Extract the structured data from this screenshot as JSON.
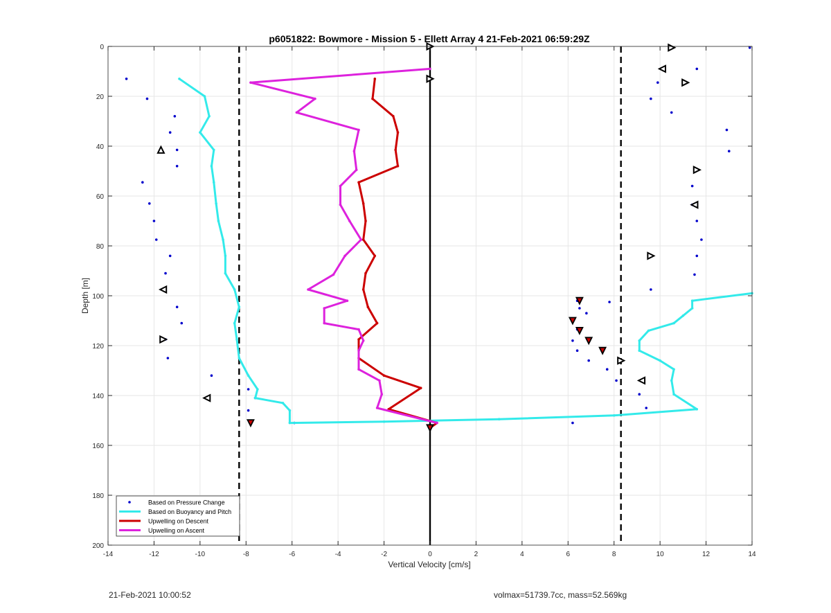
{
  "chart_data": {
    "type": "line",
    "title": "p6051822: Bowmore - Mission 5 - Ellett Array 4 21-Feb-2021 06:59:29Z",
    "xlabel": "Vertical Velocity [cm/s]",
    "ylabel": "Depth [m]",
    "xlim": [
      -14,
      14
    ],
    "ylim": [
      0,
      200
    ],
    "y_reversed": true,
    "xticks": [
      -14,
      -12,
      -10,
      -8,
      -6,
      -4,
      -2,
      0,
      2,
      4,
      6,
      8,
      10,
      12,
      14
    ],
    "yticks": [
      0,
      20,
      40,
      60,
      80,
      100,
      120,
      140,
      160,
      180,
      200
    ],
    "grid": true,
    "legend_position": "bottom-left",
    "legend": [
      "Based on Pressure Change",
      "Based on Buoyancy and Pitch",
      "Upwelling on Descent",
      "Upwelling on Ascent"
    ],
    "colors": {
      "pressure": "#0000cc",
      "buoyancy": "#33eaea",
      "descent": "#cc0000",
      "ascent": "#dd22dd",
      "threshold": "#000000",
      "axis": "#262626",
      "grid": "#e6e6e6"
    },
    "reference_lines": [
      {
        "style": "dashed",
        "x": -8.3
      },
      {
        "style": "dashed",
        "x": 8.3
      },
      {
        "style": "solid",
        "x": 0
      }
    ],
    "series": [
      {
        "name": "Based on Pressure Change",
        "marker": "dot",
        "points": [
          [
            -13.2,
            13
          ],
          [
            -12.3,
            21
          ],
          [
            -11.1,
            28
          ],
          [
            -11.3,
            34.5
          ],
          [
            -11,
            41.5
          ],
          [
            -11,
            48
          ],
          [
            -12.5,
            54.5
          ],
          [
            -12.2,
            63
          ],
          [
            -12,
            70
          ],
          [
            -11.9,
            77.5
          ],
          [
            -11.3,
            84
          ],
          [
            -11.5,
            91
          ],
          [
            -11.6,
            97.5
          ],
          [
            -11,
            104.5
          ],
          [
            -10.8,
            111
          ],
          [
            -11.5,
            117.5
          ],
          [
            -11.4,
            125
          ],
          [
            -9.5,
            132
          ],
          [
            -7.9,
            137.5
          ],
          [
            -7.6,
            141
          ],
          [
            -7.9,
            146
          ],
          [
            -5.9,
            151
          ],
          [
            6.2,
            151
          ],
          [
            9.4,
            145
          ],
          [
            9.1,
            139.5
          ],
          [
            8.1,
            134
          ],
          [
            7.7,
            129.5
          ],
          [
            6.9,
            126
          ],
          [
            6.4,
            122
          ],
          [
            6.2,
            118
          ],
          [
            6.4,
            113.5
          ],
          [
            6.2,
            110
          ],
          [
            6.5,
            105
          ],
          [
            6.8,
            107
          ],
          [
            7.8,
            102.5
          ],
          [
            6.4,
            102
          ],
          [
            9.6,
            97.5
          ],
          [
            11.5,
            91.5
          ],
          [
            11.6,
            84
          ],
          [
            11.8,
            77.5
          ],
          [
            11.6,
            70
          ],
          [
            11.4,
            63.5
          ],
          [
            11.4,
            56
          ],
          [
            11.6,
            49.5
          ],
          [
            13,
            42
          ],
          [
            12.9,
            33.5
          ],
          [
            10.5,
            26.5
          ],
          [
            9.6,
            21
          ],
          [
            9.9,
            14.5
          ],
          [
            11.6,
            9
          ],
          [
            13.9,
            0.5
          ]
        ]
      },
      {
        "name": "Based on Buoyancy and Pitch",
        "points": [
          [
            -10.9,
            13
          ],
          [
            -9.8,
            20
          ],
          [
            -9.6,
            28
          ],
          [
            -10,
            34.5
          ],
          [
            -9.4,
            41.5
          ],
          [
            -9.5,
            48
          ],
          [
            -9.4,
            54.5
          ],
          [
            -9.3,
            63
          ],
          [
            -9.2,
            70
          ],
          [
            -9,
            77.5
          ],
          [
            -8.9,
            84
          ],
          [
            -8.9,
            91
          ],
          [
            -8.5,
            97.5
          ],
          [
            -8.3,
            104.5
          ],
          [
            -8.5,
            111
          ],
          [
            -8.4,
            117.5
          ],
          [
            -8.3,
            125
          ],
          [
            -7.9,
            132
          ],
          [
            -7.5,
            137.5
          ],
          [
            -7.6,
            141
          ],
          [
            -6.4,
            143
          ],
          [
            -6.1,
            146
          ],
          [
            -6.1,
            151
          ],
          [
            -2,
            150.5
          ],
          [
            3,
            149.5
          ],
          [
            8,
            148
          ],
          [
            11.6,
            145.5
          ],
          [
            10.6,
            139.5
          ],
          [
            10.5,
            134
          ],
          [
            10.6,
            129.5
          ],
          [
            10,
            126
          ],
          [
            9.1,
            122
          ],
          [
            9.1,
            118
          ],
          [
            9.5,
            114
          ],
          [
            10.6,
            111
          ],
          [
            11,
            108
          ],
          [
            11.4,
            105
          ],
          [
            11.4,
            102
          ],
          [
            14,
            99
          ]
        ]
      },
      {
        "name": "Upwelling on Descent",
        "points": [
          [
            -2.4,
            13
          ],
          [
            -2.5,
            21
          ],
          [
            -1.6,
            28
          ],
          [
            -1.4,
            34.5
          ],
          [
            -1.5,
            41.5
          ],
          [
            -1.4,
            48
          ],
          [
            -3.1,
            54.5
          ],
          [
            -2.9,
            63
          ],
          [
            -2.8,
            70
          ],
          [
            -2.9,
            77.5
          ],
          [
            -2.4,
            84
          ],
          [
            -2.8,
            91
          ],
          [
            -2.9,
            97.5
          ],
          [
            -2.7,
            104.5
          ],
          [
            -2.3,
            111
          ],
          [
            -3.1,
            117.5
          ],
          [
            -3.1,
            125
          ],
          [
            -2,
            132
          ],
          [
            -0.4,
            137
          ],
          [
            -1.8,
            145.5
          ],
          [
            0.3,
            151
          ],
          [
            0,
            153
          ]
        ]
      },
      {
        "name": "Upwelling on Ascent",
        "points": [
          [
            0,
            9
          ],
          [
            -7.8,
            14.5
          ],
          [
            -5,
            21
          ],
          [
            -5.8,
            26.5
          ],
          [
            -3.1,
            33.5
          ],
          [
            -3.3,
            42
          ],
          [
            -3.2,
            49.5
          ],
          [
            -3.9,
            56
          ],
          [
            -3.9,
            63.5
          ],
          [
            -3.5,
            70
          ],
          [
            -3,
            77.5
          ],
          [
            -3.7,
            84
          ],
          [
            -4.2,
            91.5
          ],
          [
            -5.3,
            97.5
          ],
          [
            -3.6,
            102
          ],
          [
            -4.6,
            105
          ],
          [
            -4.6,
            111
          ],
          [
            -3.1,
            113.5
          ],
          [
            -2.9,
            118
          ],
          [
            -3.1,
            122
          ],
          [
            -3.1,
            129.5
          ],
          [
            -2.2,
            134
          ],
          [
            -2.1,
            139.5
          ],
          [
            -2.3,
            145
          ],
          [
            0.3,
            151
          ]
        ]
      }
    ],
    "triangle_markers_right": [
      [
        0,
        0
      ],
      [
        0,
        13
      ],
      [
        10.5,
        0.5
      ],
      [
        11.1,
        14.5
      ],
      [
        11.6,
        49.5
      ],
      [
        9.6,
        84
      ],
      [
        -11.6,
        117.5
      ],
      [
        8.3,
        126
      ]
    ],
    "triangle_markers_left": [
      [
        10.1,
        9
      ],
      [
        11.5,
        63.5
      ],
      [
        -11.6,
        97.5
      ],
      [
        9.2,
        134
      ],
      [
        -9.7,
        141
      ]
    ],
    "triangle_markers_up": [
      [
        -11.7,
        41.5
      ]
    ],
    "filled_markers": [
      [
        6.5,
        102
      ],
      [
        6.2,
        110
      ],
      [
        6.5,
        114
      ],
      [
        6.9,
        118
      ],
      [
        7.5,
        122
      ],
      [
        -7.8,
        151
      ],
      [
        0,
        153
      ]
    ]
  },
  "footer": {
    "left": "21-Feb-2021 10:00:52",
    "right": "volmax=51739.7cc, mass=52.569kg"
  }
}
